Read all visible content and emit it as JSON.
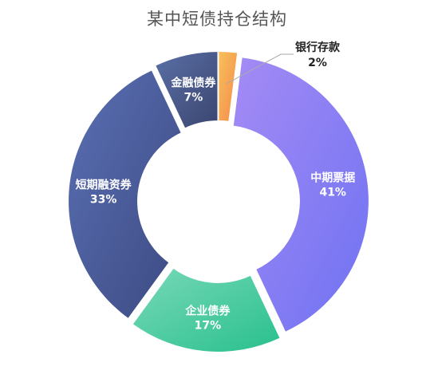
{
  "chart_data": {
    "type": "pie",
    "title": "某中短债持仓结构",
    "slices": [
      {
        "label": "银行存款",
        "value": 2,
        "display": "2%",
        "color_start": "#f7c05a",
        "color_end": "#f58a4b"
      },
      {
        "label": "中期票据",
        "value": 41,
        "display": "41%",
        "color_start": "#a48bf5",
        "color_end": "#6f72f2"
      },
      {
        "label": "企业债券",
        "value": 17,
        "display": "17%",
        "color_start": "#78d8b8",
        "color_end": "#29c08e"
      },
      {
        "label": "短期融资券",
        "value": 33,
        "display": "33%",
        "color_start": "#5a6fb3",
        "color_end": "#3c4a82"
      },
      {
        "label": "金融债券",
        "value": 7,
        "display": "7%",
        "color_start": "#5a6fa6",
        "color_end": "#3b4670"
      }
    ],
    "legend": "none"
  }
}
